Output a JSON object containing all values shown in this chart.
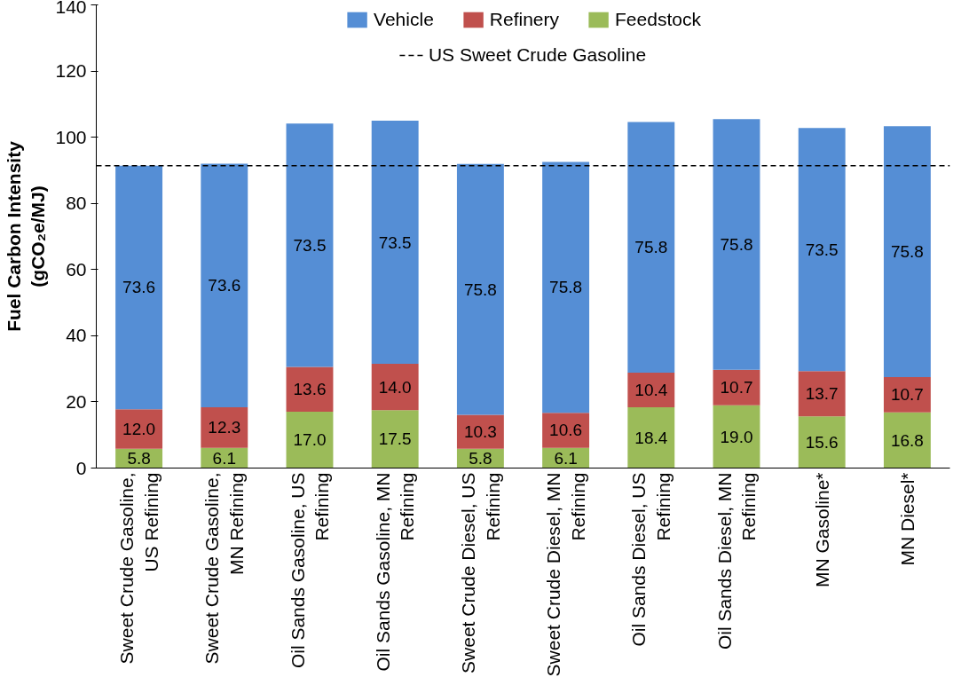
{
  "chart_data": {
    "type": "bar",
    "stacked": true,
    "ylabel": "Fuel Carbon Intensity (gCO₂e/MJ)",
    "categories": [
      "Sweet Crude Gasoline, US Refining",
      "Sweet Crude Gasoline, MN Refining",
      "Oil Sands Gasoline, US Refining",
      "Oil Sands Gasoline, MN Refining",
      "Sweet Crude Diesel, US Refining",
      "Sweet Crude Diesel, MN Refining",
      "Oil Sands Diesel, US Refining",
      "Oil Sands Diesel, MN Refining",
      "MN Gasoline*",
      "MN Diesel*"
    ],
    "series": [
      {
        "name": "Feedstock",
        "color": "#9bbb59",
        "values": [
          5.8,
          6.1,
          17.0,
          17.5,
          5.8,
          6.1,
          18.4,
          19.0,
          15.6,
          16.8
        ],
        "value_labels": [
          "5.8",
          "6.1",
          "17.0",
          "17.5",
          "5.8",
          "6.1",
          "18.4",
          "19.0",
          "15.6",
          "16.8"
        ]
      },
      {
        "name": "Refinery",
        "color": "#c0504d",
        "values": [
          12.0,
          12.3,
          13.6,
          14.0,
          10.3,
          10.6,
          10.4,
          10.7,
          13.7,
          10.7
        ],
        "value_labels": [
          "12.0",
          "12.3",
          "13.6",
          "14.0",
          "10.3",
          "10.6",
          "10.4",
          "10.7",
          "13.7",
          "10.7"
        ]
      },
      {
        "name": "Vehicle",
        "color": "#558ed5",
        "values": [
          73.6,
          73.6,
          73.5,
          73.5,
          75.8,
          75.8,
          75.8,
          75.8,
          73.5,
          75.8
        ],
        "value_labels": [
          "73.6",
          "73.6",
          "73.5",
          "73.5",
          "75.8",
          "75.8",
          "75.8",
          "75.8",
          "73.5",
          "75.8"
        ]
      }
    ],
    "ylim": [
      0,
      140
    ],
    "yticks": [
      0,
      20,
      40,
      60,
      80,
      100,
      120,
      140
    ],
    "ref_lines": [
      {
        "axis": "y",
        "value": 91.4,
        "label": "US Sweet Crude Gasoline",
        "color": "#000000",
        "line_style": "dashed"
      }
    ],
    "legend": "top",
    "grid": false
  }
}
